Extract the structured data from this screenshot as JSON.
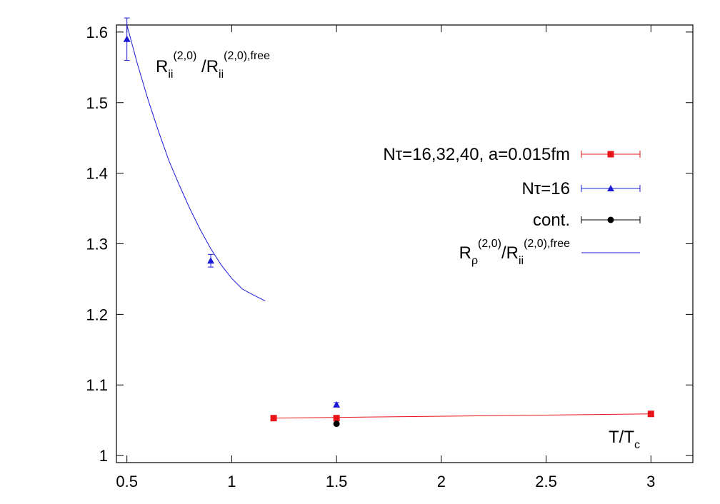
{
  "chart_data": {
    "type": "scatter",
    "title": "",
    "xlim": [
      0.45,
      3.2
    ],
    "ylim": [
      0.99,
      1.61
    ],
    "x_ticks": [
      "0.5",
      "1",
      "1.5",
      "2",
      "2.5",
      "3"
    ],
    "y_ticks": [
      "1",
      "1.1",
      "1.2",
      "1.3",
      "1.4",
      "1.5",
      "1.6"
    ],
    "grid": false,
    "legend_position": "right",
    "colors": {
      "red": "#e8141a",
      "blue": "#1a1ad6",
      "black": "#000000"
    },
    "annotations": {
      "top_left": {
        "R1": "R",
        "R1_sub": "ii",
        "R1_sup": "(2,0)",
        "slash": " /",
        "R2": "R",
        "R2_sub": "ii",
        "R2_sup": "(2,0),free"
      },
      "x_axis_label": {
        "T": "T/T",
        "T_sub": "c"
      }
    },
    "series": [
      {
        "name": "Nτ=16,32,40, a=0.015fm",
        "color": "#e8141a",
        "marker": "square",
        "points": [
          {
            "x": 1.2,
            "y": 1.053
          },
          {
            "x": 1.5,
            "y": 1.053
          },
          {
            "x": 3.0,
            "y": 1.059
          }
        ],
        "fit_line": [
          [
            1.2,
            1.053
          ],
          [
            3.0,
            1.059
          ]
        ]
      },
      {
        "name": "Nτ=16",
        "color": "#1a1ad6",
        "marker": "triangle",
        "points": [
          {
            "x": 0.5,
            "y": 1.59,
            "err": 0.03
          },
          {
            "x": 0.9,
            "y": 1.276,
            "err": 0.009
          },
          {
            "x": 1.5,
            "y": 1.072,
            "err": 0.003
          },
          {
            "x": 3.0,
            "y": 1.059,
            "err": 0.002
          }
        ]
      },
      {
        "name": "cont.",
        "color": "#000000",
        "marker": "circle",
        "points": [
          {
            "x": 1.5,
            "y": 1.045
          }
        ]
      },
      {
        "name_parts": {
          "R1": "R",
          "R1_sub": "ρ",
          "R1_sup": "(2,0)",
          "slash": "/",
          "R2": "R",
          "R2_sub": "ii",
          "R2_sup": "(2,0),free"
        },
        "color": "#1a1ad6",
        "marker": "line",
        "curve": {
          "x": [
            0.5,
            0.55,
            0.6,
            0.65,
            0.7,
            0.75,
            0.8,
            0.85,
            0.9,
            0.95,
            1.0,
            1.05,
            1.1,
            1.16
          ],
          "y": [
            1.61,
            1.555,
            1.505,
            1.46,
            1.418,
            1.383,
            1.35,
            1.32,
            1.293,
            1.27,
            1.251,
            1.236,
            1.228,
            1.219
          ]
        }
      }
    ]
  }
}
